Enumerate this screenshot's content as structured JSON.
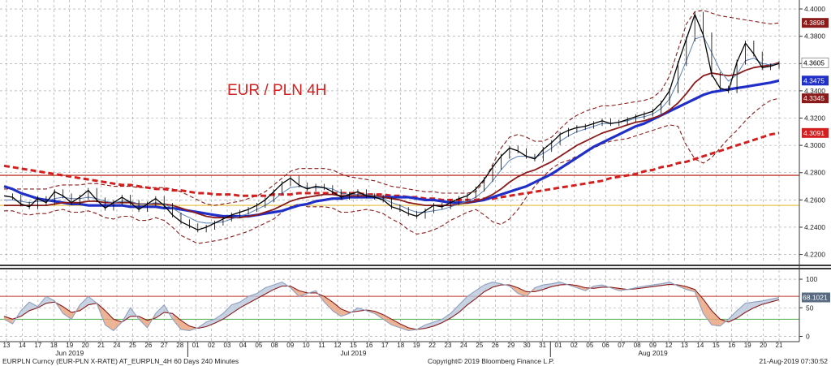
{
  "chart_data": [
    {
      "type": "line",
      "panel": "price",
      "title": "EUR / PLN 4H",
      "ylim": [
        4.215,
        4.403
      ],
      "y_ticks": [
        "4.4000",
        "4.3800",
        "4.3600",
        "4.3400",
        "4.3200",
        "4.3000",
        "4.2800",
        "4.2600",
        "4.2400",
        "4.2200"
      ],
      "y_tick_values": [
        4.4,
        4.38,
        4.36,
        4.34,
        4.32,
        4.3,
        4.28,
        4.26,
        4.24,
        4.22
      ],
      "last_value_labels": [
        {
          "text": "4.3898",
          "value": 4.3898,
          "color": "#8b1a1a"
        },
        {
          "text": "4.3605",
          "value": 4.3605,
          "color": "#ffffff"
        },
        {
          "text": "4.3475",
          "value": 4.3475,
          "color": "#1f2fc8"
        },
        {
          "text": "4.3345",
          "value": 4.3345,
          "color": "#8b1a1a"
        },
        {
          "text": "4.3091",
          "value": 4.3091,
          "color": "#d41f1f"
        }
      ],
      "horizontal_lines": [
        {
          "value": 4.278,
          "color": "#c0392b"
        },
        {
          "value": 4.256,
          "color": "#e8c95a"
        }
      ],
      "series": [
        {
          "style": "price",
          "color": "#000000",
          "values": [
            4.263,
            4.262,
            4.257,
            4.255,
            4.261,
            4.258,
            4.266,
            4.263,
            4.258,
            4.262,
            4.267,
            4.26,
            4.254,
            4.258,
            4.262,
            4.258,
            4.253,
            4.257,
            4.261,
            4.256,
            4.249,
            4.244,
            4.241,
            4.238,
            4.24,
            4.243,
            4.246,
            4.249,
            4.251,
            4.253,
            4.256,
            4.26,
            4.266,
            4.272,
            4.276,
            4.271,
            4.268,
            4.27,
            4.269,
            4.266,
            4.262,
            4.264,
            4.266,
            4.263,
            4.262,
            4.26,
            4.255,
            4.253,
            4.25,
            4.248,
            4.252,
            4.256,
            4.255,
            4.258,
            4.261,
            4.263,
            4.268,
            4.275,
            4.284,
            4.292,
            4.298,
            4.296,
            4.292,
            4.29,
            4.297,
            4.302,
            4.308,
            4.311,
            4.313,
            4.314,
            4.316,
            4.318,
            4.316,
            4.317,
            4.319,
            4.321,
            4.323,
            4.325,
            4.331,
            4.34,
            4.36,
            4.378,
            4.396,
            4.381,
            4.352,
            4.342,
            4.34,
            4.361,
            4.375,
            4.367,
            4.357,
            4.358,
            4.36
          ]
        },
        {
          "style": "ma_fast",
          "color": "#5a7fb5",
          "values": [
            4.26,
            4.26,
            4.259,
            4.258,
            4.259,
            4.259,
            4.261,
            4.262,
            4.261,
            4.261,
            4.262,
            4.261,
            4.259,
            4.258,
            4.259,
            4.259,
            4.257,
            4.257,
            4.258,
            4.257,
            4.254,
            4.25,
            4.247,
            4.244,
            4.243,
            4.243,
            4.244,
            4.246,
            4.248,
            4.25,
            4.253,
            4.256,
            4.26,
            4.265,
            4.269,
            4.27,
            4.269,
            4.269,
            4.269,
            4.268,
            4.265,
            4.264,
            4.264,
            4.264,
            4.263,
            4.261,
            4.258,
            4.256,
            4.253,
            4.251,
            4.251,
            4.252,
            4.253,
            4.255,
            4.257,
            4.259,
            4.262,
            4.267,
            4.274,
            4.282,
            4.289,
            4.292,
            4.292,
            4.291,
            4.294,
            4.298,
            4.303,
            4.307,
            4.31,
            4.312,
            4.314,
            4.316,
            4.316,
            4.317,
            4.318,
            4.32,
            4.321,
            4.323,
            4.327,
            4.334,
            4.347,
            4.362,
            4.378,
            4.38,
            4.368,
            4.355,
            4.347,
            4.352,
            4.362,
            4.364,
            4.36,
            4.359,
            4.36
          ]
        },
        {
          "style": "ma_mid",
          "color": "#8b1a1a",
          "values": [
            4.256,
            4.256,
            4.256,
            4.256,
            4.256,
            4.256,
            4.257,
            4.258,
            4.258,
            4.258,
            4.259,
            4.259,
            4.258,
            4.258,
            4.258,
            4.258,
            4.257,
            4.257,
            4.257,
            4.257,
            4.256,
            4.254,
            4.252,
            4.25,
            4.248,
            4.247,
            4.247,
            4.247,
            4.247,
            4.248,
            4.249,
            4.251,
            4.253,
            4.256,
            4.259,
            4.261,
            4.262,
            4.263,
            4.264,
            4.264,
            4.263,
            4.263,
            4.263,
            4.263,
            4.263,
            4.262,
            4.261,
            4.26,
            4.258,
            4.257,
            4.256,
            4.256,
            4.256,
            4.256,
            4.257,
            4.258,
            4.259,
            4.261,
            4.264,
            4.268,
            4.273,
            4.277,
            4.28,
            4.282,
            4.285,
            4.288,
            4.292,
            4.296,
            4.3,
            4.303,
            4.306,
            4.309,
            4.311,
            4.313,
            4.315,
            4.317,
            4.318,
            4.32,
            4.322,
            4.326,
            4.331,
            4.338,
            4.346,
            4.351,
            4.353,
            4.352,
            4.351,
            4.352,
            4.355,
            4.357,
            4.358,
            4.359,
            4.3605
          ]
        },
        {
          "style": "ma_slow",
          "color": "#1f2fc8",
          "values": [
            4.27,
            4.268,
            4.265,
            4.263,
            4.261,
            4.26,
            4.259,
            4.258,
            4.257,
            4.257,
            4.256,
            4.256,
            4.256,
            4.256,
            4.256,
            4.255,
            4.255,
            4.255,
            4.255,
            4.254,
            4.254,
            4.253,
            4.252,
            4.251,
            4.25,
            4.249,
            4.248,
            4.248,
            4.248,
            4.248,
            4.249,
            4.25,
            4.251,
            4.252,
            4.254,
            4.256,
            4.257,
            4.259,
            4.26,
            4.261,
            4.261,
            4.262,
            4.262,
            4.262,
            4.262,
            4.262,
            4.262,
            4.262,
            4.262,
            4.261,
            4.26,
            4.26,
            4.259,
            4.258,
            4.258,
            4.258,
            4.259,
            4.26,
            4.262,
            4.264,
            4.266,
            4.268,
            4.27,
            4.273,
            4.276,
            4.279,
            4.283,
            4.287,
            4.291,
            4.295,
            4.299,
            4.302,
            4.305,
            4.308,
            4.311,
            4.314,
            4.316,
            4.319,
            4.322,
            4.325,
            4.328,
            4.331,
            4.334,
            4.337,
            4.339,
            4.34,
            4.341,
            4.342,
            4.343,
            4.344,
            4.345,
            4.346,
            4.3475
          ]
        },
        {
          "style": "ma_dashed",
          "color": "#d41f1f",
          "values": [
            4.285,
            4.284,
            4.283,
            4.282,
            4.281,
            4.28,
            4.279,
            4.278,
            4.277,
            4.276,
            4.275,
            4.274,
            4.273,
            4.272,
            4.271,
            4.271,
            4.27,
            4.269,
            4.268,
            4.268,
            4.267,
            4.267,
            4.266,
            4.265,
            4.265,
            4.264,
            4.264,
            4.264,
            4.263,
            4.263,
            4.263,
            4.263,
            4.264,
            4.264,
            4.264,
            4.265,
            4.265,
            4.265,
            4.265,
            4.265,
            4.265,
            4.265,
            4.265,
            4.264,
            4.264,
            4.264,
            4.263,
            4.263,
            4.262,
            4.262,
            4.261,
            4.261,
            4.26,
            4.26,
            4.26,
            4.26,
            4.26,
            4.261,
            4.261,
            4.262,
            4.263,
            4.264,
            4.265,
            4.266,
            4.267,
            4.268,
            4.269,
            4.27,
            4.271,
            4.272,
            4.273,
            4.274,
            4.276,
            4.277,
            4.278,
            4.279,
            4.281,
            4.282,
            4.284,
            4.285,
            4.287,
            4.288,
            4.29,
            4.292,
            4.294,
            4.296,
            4.298,
            4.3,
            4.302,
            4.304,
            4.306,
            4.308,
            4.3091
          ]
        },
        {
          "style": "band",
          "color": "#8b1a1a",
          "values": [
            4.268,
            4.268,
            4.268,
            4.268,
            4.268,
            4.268,
            4.27,
            4.271,
            4.271,
            4.271,
            4.272,
            4.272,
            4.271,
            4.27,
            4.27,
            4.27,
            4.269,
            4.269,
            4.269,
            4.269,
            4.268,
            4.266,
            4.263,
            4.26,
            4.257,
            4.256,
            4.257,
            4.258,
            4.259,
            4.261,
            4.263,
            4.266,
            4.271,
            4.276,
            4.281,
            4.283,
            4.283,
            4.283,
            4.283,
            4.282,
            4.279,
            4.277,
            4.276,
            4.275,
            4.274,
            4.272,
            4.27,
            4.269,
            4.268,
            4.267,
            4.266,
            4.266,
            4.265,
            4.265,
            4.265,
            4.265,
            4.266,
            4.274,
            4.286,
            4.298,
            4.306,
            4.308,
            4.306,
            4.303,
            4.303,
            4.306,
            4.312,
            4.318,
            4.322,
            4.325,
            4.327,
            4.329,
            4.329,
            4.33,
            4.331,
            4.332,
            4.333,
            4.335,
            4.34,
            4.351,
            4.37,
            4.389,
            4.398,
            4.399,
            4.397,
            4.395,
            4.394,
            4.393,
            4.392,
            4.391,
            4.39,
            4.389,
            4.3898
          ]
        },
        {
          "style": "band",
          "color": "#8b1a1a",
          "values": [
            4.252,
            4.252,
            4.25,
            4.249,
            4.25,
            4.25,
            4.252,
            4.253,
            4.251,
            4.251,
            4.252,
            4.25,
            4.247,
            4.246,
            4.248,
            4.248,
            4.245,
            4.245,
            4.247,
            4.245,
            4.24,
            4.234,
            4.231,
            4.228,
            4.229,
            4.23,
            4.231,
            4.233,
            4.235,
            4.237,
            4.24,
            4.243,
            4.246,
            4.251,
            4.255,
            4.257,
            4.255,
            4.255,
            4.255,
            4.254,
            4.251,
            4.251,
            4.252,
            4.253,
            4.252,
            4.25,
            4.246,
            4.243,
            4.238,
            4.235,
            4.236,
            4.238,
            4.241,
            4.245,
            4.248,
            4.251,
            4.253,
            4.249,
            4.244,
            4.242,
            4.246,
            4.253,
            4.262,
            4.27,
            4.277,
            4.283,
            4.287,
            4.289,
            4.292,
            4.295,
            4.298,
            4.301,
            4.303,
            4.304,
            4.305,
            4.307,
            4.309,
            4.311,
            4.313,
            4.315,
            4.314,
            4.3,
            4.29,
            4.287,
            4.291,
            4.298,
            4.305,
            4.311,
            4.318,
            4.324,
            4.329,
            4.333,
            4.3345
          ]
        }
      ]
    },
    {
      "type": "line",
      "panel": "oscillator",
      "ylim": [
        -5,
        110
      ],
      "y_ticks": [
        "100",
        "50",
        "0"
      ],
      "y_tick_values": [
        100,
        50,
        0
      ],
      "last_value_labels": [
        {
          "text": "68.1021",
          "value": 68.1021,
          "color": "#5a6a80"
        }
      ],
      "horizontal_lines": [
        {
          "value": 70,
          "color": "#c0392b"
        },
        {
          "value": 30,
          "color": "#4cae4c"
        }
      ],
      "series": [
        {
          "style": "fast",
          "color": "#8fa0bf",
          "values": [
            30,
            22,
            45,
            60,
            52,
            70,
            62,
            40,
            30,
            55,
            70,
            58,
            20,
            10,
            25,
            50,
            30,
            15,
            40,
            55,
            30,
            12,
            10,
            15,
            25,
            30,
            40,
            55,
            60,
            70,
            75,
            85,
            90,
            95,
            85,
            70,
            75,
            80,
            60,
            45,
            35,
            40,
            50,
            45,
            40,
            30,
            20,
            15,
            10,
            12,
            20,
            25,
            30,
            40,
            55,
            70,
            80,
            90,
            95,
            92,
            88,
            75,
            70,
            85,
            90,
            92,
            95,
            90,
            85,
            80,
            88,
            90,
            85,
            80,
            82,
            85,
            88,
            90,
            92,
            95,
            88,
            82,
            78,
            40,
            20,
            18,
            30,
            45,
            58,
            60,
            62,
            65,
            68
          ]
        },
        {
          "style": "slow",
          "color": "#8b1a1a",
          "values": [
            35,
            30,
            35,
            45,
            50,
            58,
            60,
            52,
            42,
            45,
            55,
            58,
            45,
            30,
            25,
            35,
            35,
            28,
            32,
            42,
            40,
            28,
            18,
            14,
            17,
            23,
            30,
            40,
            50,
            58,
            66,
            74,
            82,
            88,
            88,
            80,
            76,
            76,
            70,
            60,
            48,
            42,
            44,
            46,
            44,
            38,
            30,
            22,
            15,
            12,
            14,
            18,
            24,
            32,
            42,
            55,
            66,
            78,
            86,
            90,
            90,
            85,
            78,
            78,
            82,
            87,
            90,
            91,
            89,
            85,
            84,
            86,
            86,
            84,
            82,
            83,
            85,
            87,
            89,
            91,
            90,
            87,
            82,
            65,
            45,
            30,
            25,
            32,
            42,
            50,
            56,
            60,
            64
          ]
        }
      ]
    }
  ],
  "x_axis": {
    "day_labels": [
      "13",
      "14",
      "17",
      "18",
      "19",
      "20",
      "21",
      "24",
      "25",
      "26",
      "27",
      "28",
      "01",
      "02",
      "03",
      "04",
      "05",
      "08",
      "09",
      "10",
      "11",
      "12",
      "15",
      "16",
      "17",
      "18",
      "19",
      "22",
      "23",
      "24",
      "25",
      "26",
      "29",
      "30",
      "31",
      "01",
      "02",
      "05",
      "06",
      "07",
      "08",
      "09",
      "12",
      "13",
      "14",
      "15",
      "16",
      "19",
      "20",
      "21"
    ],
    "month_labels": [
      "Jun 2019",
      "Jul 2019",
      "Aug 2019"
    ],
    "month_label_day_index": [
      4,
      22,
      41
    ],
    "month_boundary_day_index": [
      12,
      35
    ]
  },
  "footer": {
    "left": "EURPLN Curncy (EUR-PLN X-RATE) AT_EURPLN_4H 60 Days 240 Minutes",
    "center": "Copyright© 2019 Bloomberg Finance L.P.",
    "right": "21-Aug-2019 07:30:52"
  },
  "colors": {
    "title": "#d41f1f",
    "grid": "#9a9a9a"
  }
}
